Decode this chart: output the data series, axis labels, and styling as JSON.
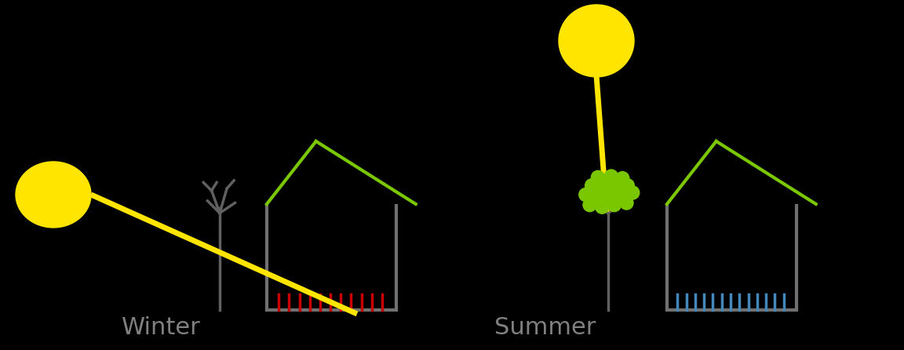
{
  "bg_color": "#000000",
  "sun_color": "#FFE500",
  "ray_color": "#FFE500",
  "house_roof_color": "#7AC700",
  "house_wall_color": "#707070",
  "tree_color": "#606060",
  "leaf_fill_color": "#7AC700",
  "leaf_edge_color": "#7AC700",
  "heat_color_winter": "#CC0000",
  "heat_color_summer": "#4488BB",
  "label_color": "#808080",
  "winter_label": "Winter",
  "summer_label": "Summer",
  "ray_lw": 5,
  "house_lw": 3,
  "tree_lw": 2,
  "heat_lw": 2.5,
  "label_fontsize": 22
}
